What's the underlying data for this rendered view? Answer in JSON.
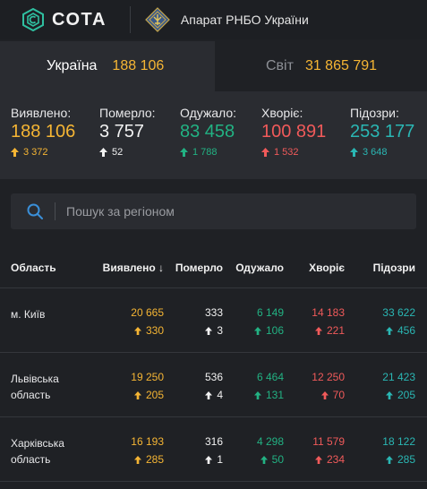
{
  "header": {
    "brand": "СОТА",
    "org": "Апарат РНБО України"
  },
  "colors": {
    "yellow": "#f5b534",
    "green": "#22b283",
    "red": "#f05a5a",
    "teal": "#2ab7b4",
    "white": "#f2f2f2"
  },
  "tabs": [
    {
      "label": "Україна",
      "value": "188 106",
      "active": true
    },
    {
      "label": "Світ",
      "value": "31 865 791",
      "active": false
    }
  ],
  "stats": [
    {
      "label": "Виявлено:",
      "value": "188 106",
      "delta": "3 372",
      "color": "yellow"
    },
    {
      "label": "Померло:",
      "value": "3 757",
      "delta": "52",
      "color": "white"
    },
    {
      "label": "Одужало:",
      "value": "83 458",
      "delta": "1 788",
      "color": "green"
    },
    {
      "label": "Хворіє:",
      "value": "100 891",
      "delta": "1 532",
      "color": "red"
    },
    {
      "label": "Підозри:",
      "value": "253 177",
      "delta": "3 648",
      "color": "teal"
    }
  ],
  "search": {
    "placeholder": "Пошук за регіоном",
    "value": ""
  },
  "table": {
    "columns": [
      "Область",
      "Виявлено",
      "Померло",
      "Одужало",
      "Хворіє",
      "Підозри"
    ],
    "sort_indicator": "↓",
    "rows": [
      {
        "name": "м. Київ",
        "cells": [
          [
            "20 665",
            "330"
          ],
          [
            "333",
            "3"
          ],
          [
            "6 149",
            "106"
          ],
          [
            "14 183",
            "221"
          ],
          [
            "33 622",
            "456"
          ]
        ]
      },
      {
        "name": "Львівська область",
        "cells": [
          [
            "19 250",
            "205"
          ],
          [
            "536",
            "4"
          ],
          [
            "6 464",
            "131"
          ],
          [
            "12 250",
            "70"
          ],
          [
            "21 423",
            "205"
          ]
        ]
      },
      {
        "name": "Харківська область",
        "cells": [
          [
            "16 193",
            "285"
          ],
          [
            "316",
            "1"
          ],
          [
            "4 298",
            "50"
          ],
          [
            "11 579",
            "234"
          ],
          [
            "18 122",
            "285"
          ]
        ]
      }
    ]
  }
}
